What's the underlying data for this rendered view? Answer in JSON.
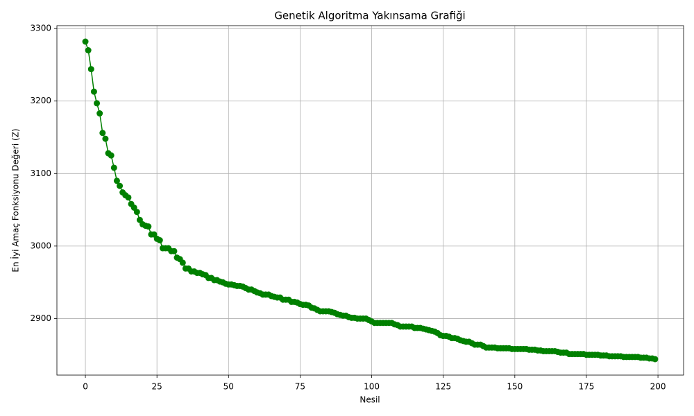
{
  "chart_data": {
    "type": "line",
    "title": "Genetik Algoritma Yakınsama Grafiği",
    "x_label": "Nesil",
    "y_label": "En İyi Amaç Fonksiyonu Değeri (Z)",
    "color": "#008000",
    "grid": true,
    "xlim": [
      -9.95,
      208.95
    ],
    "ylim": [
      2822,
      3304
    ],
    "xticks": [
      0,
      25,
      50,
      75,
      100,
      125,
      150,
      175,
      200
    ],
    "yticks": [
      2900,
      3000,
      3100,
      3200,
      3300
    ],
    "x": [
      0,
      1,
      2,
      3,
      4,
      5,
      6,
      7,
      8,
      9,
      10,
      11,
      12,
      13,
      14,
      15,
      16,
      17,
      18,
      19,
      20,
      21,
      22,
      23,
      24,
      25,
      26,
      27,
      28,
      29,
      30,
      31,
      32,
      33,
      34,
      35,
      36,
      37,
      38,
      39,
      40,
      41,
      42,
      43,
      44,
      45,
      46,
      47,
      48,
      49,
      50,
      51,
      52,
      53,
      54,
      55,
      56,
      57,
      58,
      59,
      60,
      61,
      62,
      63,
      64,
      65,
      66,
      67,
      68,
      69,
      70,
      71,
      72,
      73,
      74,
      75,
      76,
      77,
      78,
      79,
      80,
      81,
      82,
      83,
      84,
      85,
      86,
      87,
      88,
      89,
      90,
      91,
      92,
      93,
      94,
      95,
      96,
      97,
      98,
      99,
      100,
      101,
      102,
      103,
      104,
      105,
      106,
      107,
      108,
      109,
      110,
      111,
      112,
      113,
      114,
      115,
      116,
      117,
      118,
      119,
      120,
      121,
      122,
      123,
      124,
      125,
      126,
      127,
      128,
      129,
      130,
      131,
      132,
      133,
      134,
      135,
      136,
      137,
      138,
      139,
      140,
      141,
      142,
      143,
      144,
      145,
      146,
      147,
      148,
      149,
      150,
      151,
      152,
      153,
      154,
      155,
      156,
      157,
      158,
      159,
      160,
      161,
      162,
      163,
      164,
      165,
      166,
      167,
      168,
      169,
      170,
      171,
      172,
      173,
      174,
      175,
      176,
      177,
      178,
      179,
      180,
      181,
      182,
      183,
      184,
      185,
      186,
      187,
      188,
      189,
      190,
      191,
      192,
      193,
      194,
      195,
      196,
      197,
      198,
      199
    ],
    "values": [
      3282,
      3270,
      3244,
      3213,
      3197,
      3183,
      3156,
      3148,
      3128,
      3125,
      3108,
      3090,
      3083,
      3074,
      3070,
      3067,
      3058,
      3053,
      3047,
      3036,
      3030,
      3028,
      3027,
      3016,
      3016,
      3010,
      3008,
      2997,
      2997,
      2997,
      2993,
      2993,
      2984,
      2982,
      2977,
      2969,
      2969,
      2965,
      2965,
      2963,
      2963,
      2961,
      2960,
      2956,
      2956,
      2953,
      2953,
      2951,
      2950,
      2948,
      2947,
      2947,
      2946,
      2945,
      2945,
      2944,
      2942,
      2940,
      2940,
      2938,
      2936,
      2935,
      2933,
      2933,
      2933,
      2931,
      2930,
      2929,
      2929,
      2926,
      2926,
      2926,
      2923,
      2923,
      2922,
      2920,
      2919,
      2919,
      2918,
      2915,
      2914,
      2912,
      2910,
      2910,
      2910,
      2910,
      2909,
      2908,
      2906,
      2905,
      2904,
      2904,
      2902,
      2901,
      2901,
      2900,
      2900,
      2900,
      2900,
      2898,
      2896,
      2894,
      2894,
      2894,
      2894,
      2894,
      2894,
      2894,
      2892,
      2891,
      2889,
      2889,
      2889,
      2889,
      2889,
      2887,
      2887,
      2887,
      2886,
      2885,
      2884,
      2883,
      2882,
      2880,
      2877,
      2876,
      2876,
      2875,
      2873,
      2873,
      2872,
      2870,
      2869,
      2868,
      2868,
      2866,
      2864,
      2864,
      2864,
      2862,
      2860,
      2860,
      2860,
      2860,
      2859,
      2859,
      2859,
      2859,
      2859,
      2858,
      2858,
      2858,
      2858,
      2858,
      2858,
      2857,
      2857,
      2857,
      2856,
      2856,
      2855,
      2855,
      2855,
      2855,
      2855,
      2854,
      2853,
      2853,
      2853,
      2851,
      2851,
      2851,
      2851,
      2851,
      2851,
      2850,
      2850,
      2850,
      2850,
      2850,
      2849,
      2849,
      2849,
      2848,
      2848,
      2848,
      2848,
      2848,
      2847,
      2847,
      2847,
      2847,
      2847,
      2847,
      2846,
      2846,
      2846,
      2845,
      2845,
      2844
    ]
  }
}
